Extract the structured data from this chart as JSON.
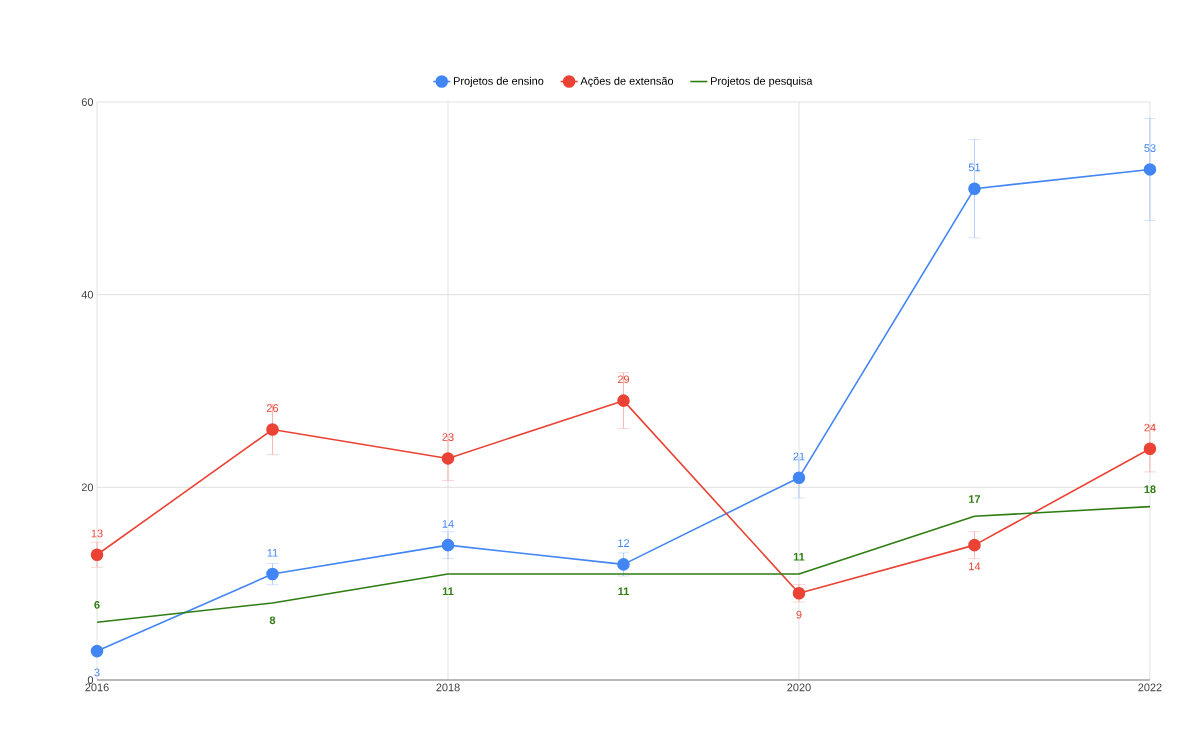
{
  "chart_data": {
    "type": "line",
    "x": [
      2016,
      2017,
      2018,
      2019,
      2020,
      2021,
      2022
    ],
    "xlim": [
      2016,
      2022
    ],
    "xticks": [
      2016,
      2018,
      2020,
      2022
    ],
    "ylim": [
      0,
      60
    ],
    "yticks": [
      0,
      20,
      40,
      60
    ],
    "grid": true,
    "legend": "top",
    "data_labels": true,
    "series": [
      {
        "name": "Projetos de ensino",
        "color": "#4285f4",
        "marker": "circle",
        "values": [
          3,
          11,
          14,
          12,
          21,
          51,
          53
        ],
        "errors": [
          0.3,
          1.1,
          1.4,
          1.2,
          2.1,
          5.1,
          5.3
        ]
      },
      {
        "name": "Ações de extensão",
        "color": "#ea4335",
        "marker": "circle",
        "values": [
          13,
          26,
          23,
          29,
          9,
          14,
          24
        ],
        "errors": [
          1.3,
          2.6,
          2.3,
          2.9,
          0.9,
          1.4,
          2.4
        ]
      },
      {
        "name": "Projetos  de pesquisa",
        "color": "#2e7d12",
        "marker": "none",
        "values": [
          6,
          8,
          11,
          11,
          11,
          17,
          18
        ]
      }
    ]
  }
}
